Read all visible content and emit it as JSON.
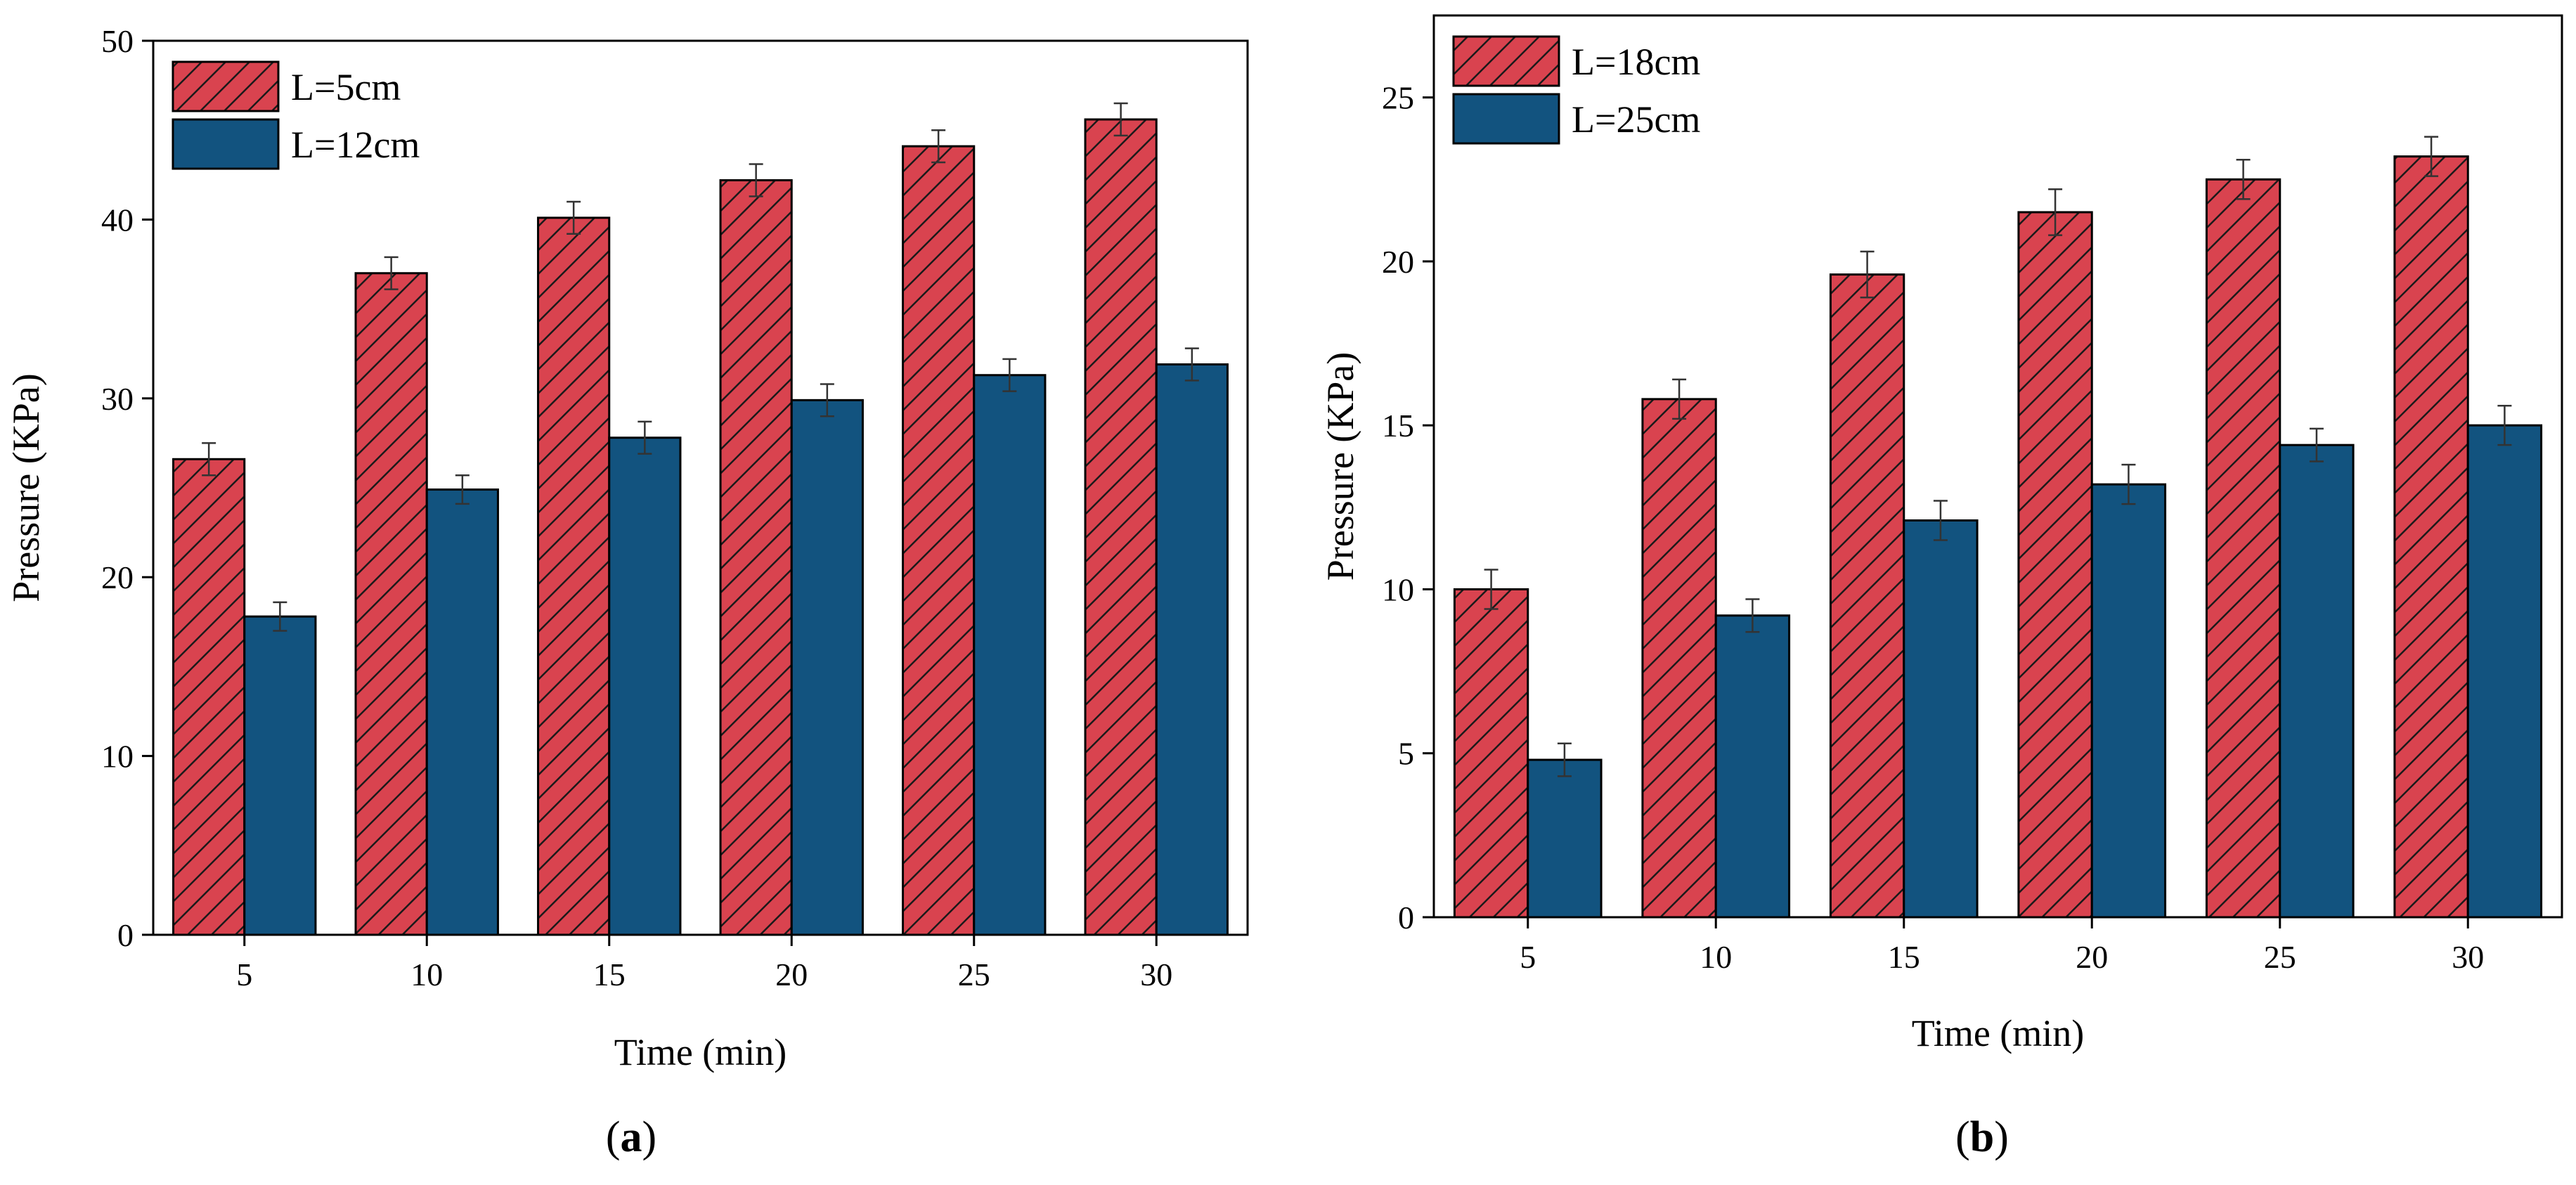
{
  "chart_data": [
    {
      "id": "a",
      "type": "bar",
      "panel_label": "a",
      "categories": [
        "5",
        "10",
        "15",
        "20",
        "25",
        "30"
      ],
      "series": [
        {
          "name": "L=5cm",
          "values": [
            26.6,
            37.0,
            40.1,
            42.2,
            44.1,
            45.6
          ],
          "errors": [
            0.9,
            0.9,
            0.9,
            0.9,
            0.9,
            0.9
          ],
          "color": "#d9434f",
          "pattern": "hatch"
        },
        {
          "name": "L=12cm",
          "values": [
            17.8,
            24.9,
            27.8,
            29.9,
            31.3,
            31.9
          ],
          "errors": [
            0.8,
            0.8,
            0.9,
            0.9,
            0.9,
            0.9
          ],
          "color": "#12537f",
          "pattern": "solid"
        }
      ],
      "title": "",
      "xlabel": "Time (min)",
      "ylabel": "Pressure (KPa)",
      "ylim": [
        0,
        50
      ],
      "yticks": [
        0,
        10,
        20,
        30,
        40,
        50
      ],
      "legend_position": "top-left"
    },
    {
      "id": "b",
      "type": "bar",
      "panel_label": "b",
      "categories": [
        "5",
        "10",
        "15",
        "20",
        "25",
        "30"
      ],
      "series": [
        {
          "name": "L=18cm",
          "values": [
            10.0,
            15.8,
            19.6,
            21.5,
            22.5,
            23.2
          ],
          "errors": [
            0.6,
            0.6,
            0.7,
            0.7,
            0.6,
            0.6
          ],
          "color": "#d9434f",
          "pattern": "hatch"
        },
        {
          "name": "L=25cm",
          "values": [
            4.8,
            9.2,
            12.1,
            13.2,
            14.4,
            15.0
          ],
          "errors": [
            0.5,
            0.5,
            0.6,
            0.6,
            0.5,
            0.6
          ],
          "color": "#12537f",
          "pattern": "solid"
        }
      ],
      "title": "",
      "xlabel": "Time (min)",
      "ylabel": "Pressure (KPa)",
      "ylim": [
        0,
        27.5
      ],
      "yticks": [
        0,
        5,
        10,
        15,
        20,
        25
      ],
      "legend_position": "top-left"
    }
  ]
}
